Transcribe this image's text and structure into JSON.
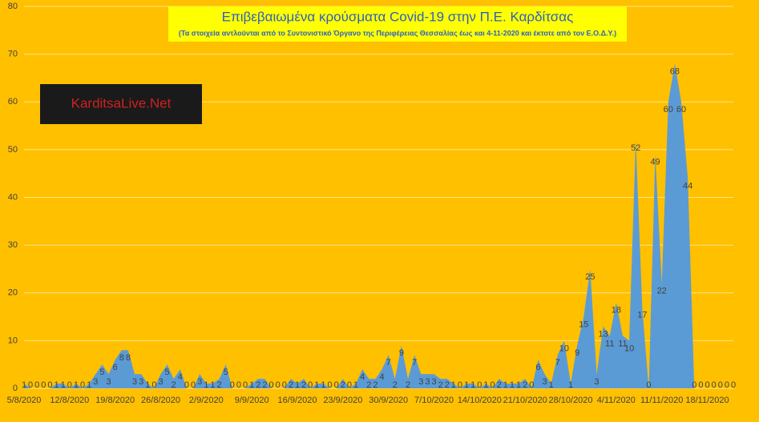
{
  "chart_data": {
    "type": "area",
    "title": "Επιβεβαιωμένα κρούσματα Covid-19 στην Π.Ε. Καρδίτσας",
    "subtitle": "(Τα στοιχεία αντλούνται από το Συντονιστικό Όργανο της Περιφέρειας Θεσσαλίας έως και 4-11-2020 και έκτοτε από τον Ε.Ο.Δ.Υ.)",
    "logo": "KarditsaLive.Net",
    "categories": [
      "5/8/2020",
      null,
      null,
      null,
      null,
      null,
      null,
      "12/8/2020",
      null,
      null,
      null,
      null,
      null,
      null,
      "19/8/2020",
      null,
      null,
      null,
      null,
      null,
      null,
      "26/8/2020",
      null,
      null,
      null,
      null,
      null,
      null,
      "2/9/2020",
      null,
      null,
      null,
      null,
      null,
      null,
      "9/9/2020",
      null,
      null,
      null,
      null,
      null,
      null,
      "16/9/2020",
      null,
      null,
      null,
      null,
      null,
      null,
      "23/9/2020",
      null,
      null,
      null,
      null,
      null,
      null,
      "30/9/2020",
      null,
      null,
      null,
      null,
      null,
      null,
      "7/10/2020",
      null,
      null,
      null,
      null,
      null,
      null,
      "14/10/2020",
      null,
      null,
      null,
      null,
      null,
      null,
      "21/10/2020",
      null,
      null,
      null,
      null,
      null,
      null,
      "28/10/2020",
      null,
      null,
      null,
      null,
      null,
      null,
      "4/11/2020",
      null,
      null,
      null,
      null,
      null,
      null,
      "11/11/2020",
      null,
      null,
      null,
      null,
      null,
      null,
      "18/11/2020",
      null,
      null,
      null,
      null
    ],
    "values": [
      1,
      0,
      0,
      0,
      0,
      1,
      1,
      0,
      1,
      0,
      1,
      3,
      5,
      3,
      6,
      8,
      8,
      3,
      3,
      1,
      0,
      3,
      5,
      2,
      4,
      0,
      0,
      3,
      1,
      1,
      2,
      5,
      0,
      0,
      0,
      1,
      2,
      2,
      0,
      0,
      0,
      2,
      1,
      2,
      0,
      1,
      1,
      0,
      0,
      2,
      0,
      1,
      4,
      2,
      2,
      4,
      7,
      2,
      9,
      2,
      7,
      3,
      3,
      3,
      2,
      2,
      1,
      0,
      1,
      1,
      0,
      1,
      0,
      2,
      1,
      1,
      1,
      2,
      0,
      6,
      3,
      1,
      7,
      10,
      1,
      9,
      15,
      25,
      3,
      13,
      11,
      18,
      11,
      10,
      52,
      17,
      0,
      49,
      22,
      60,
      68,
      60,
      44,
      0,
      0,
      0,
      0,
      0,
      0,
      0
    ],
    "color": "#5b9bd5",
    "ylim": [
      0,
      80
    ],
    "yticks": [
      0,
      10,
      20,
      30,
      40,
      50,
      60,
      70,
      80
    ],
    "grid": true
  }
}
